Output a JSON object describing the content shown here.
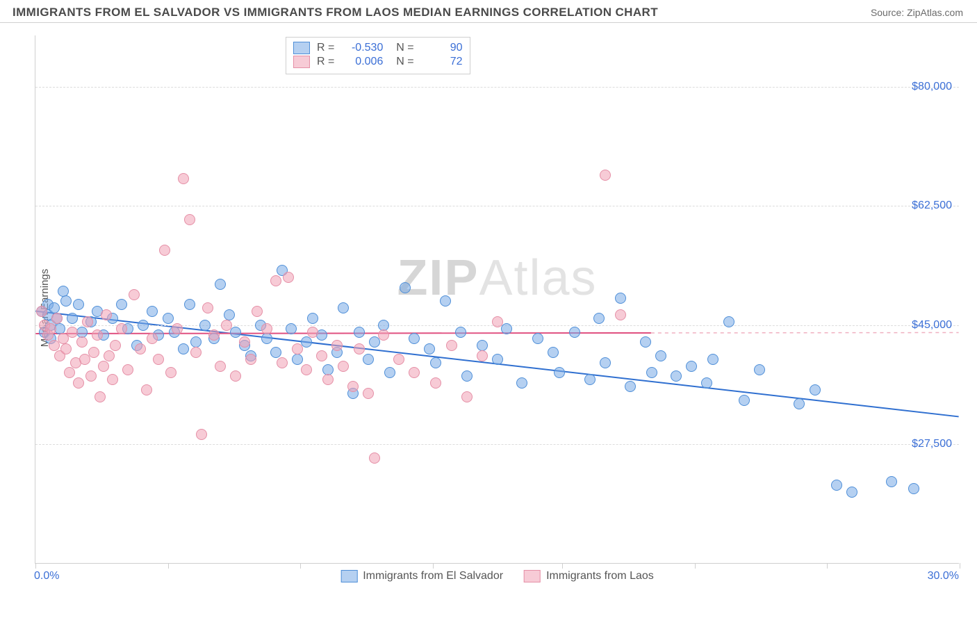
{
  "title": "IMMIGRANTS FROM EL SALVADOR VS IMMIGRANTS FROM LAOS MEDIAN EARNINGS CORRELATION CHART",
  "source": "Source: ZipAtlas.com",
  "ylabel": "Median Earnings",
  "watermark_bold": "ZIP",
  "watermark_rest": "Atlas",
  "chart": {
    "type": "scatter",
    "xlim": [
      0,
      30
    ],
    "ylim": [
      10000,
      87500
    ],
    "x_tick_positions": [
      0,
      4.3,
      8.6,
      12.9,
      17.1,
      21.4,
      25.7,
      30
    ],
    "x_start_label": "0.0%",
    "x_end_label": "30.0%",
    "y_gridlines": [
      27500,
      45000,
      62500,
      80000
    ],
    "y_tick_labels": [
      "$27,500",
      "$45,000",
      "$62,500",
      "$80,000"
    ],
    "grid_color": "#dcdcdc",
    "background_color": "#ffffff",
    "axis_color": "#cfcfcf",
    "label_color": "#3b6fd6",
    "series": [
      {
        "name": "Immigrants from El Salvador",
        "color_fill": "rgba(120,170,230,0.55)",
        "color_stroke": "#4f8fd8",
        "R": "-0.530",
        "N": "90",
        "trend": {
          "x1": 0,
          "y1": 47000,
          "x2": 30,
          "y2": 31500,
          "stroke": "#2f6fd0",
          "width": 2
        },
        "points": [
          [
            0.2,
            47000
          ],
          [
            0.3,
            44000
          ],
          [
            0.4,
            46500
          ],
          [
            0.4,
            48000
          ],
          [
            0.5,
            45000
          ],
          [
            0.5,
            43000
          ],
          [
            0.6,
            47500
          ],
          [
            0.7,
            46000
          ],
          [
            0.8,
            44500
          ],
          [
            0.9,
            50000
          ],
          [
            1.0,
            48500
          ],
          [
            1.2,
            46000
          ],
          [
            1.4,
            48000
          ],
          [
            1.5,
            44000
          ],
          [
            1.8,
            45500
          ],
          [
            2.0,
            47000
          ],
          [
            2.2,
            43500
          ],
          [
            2.5,
            46000
          ],
          [
            2.8,
            48000
          ],
          [
            3.0,
            44500
          ],
          [
            3.3,
            42000
          ],
          [
            3.5,
            45000
          ],
          [
            3.8,
            47000
          ],
          [
            4.0,
            43500
          ],
          [
            4.3,
            46000
          ],
          [
            4.5,
            44000
          ],
          [
            4.8,
            41500
          ],
          [
            5.0,
            48000
          ],
          [
            5.2,
            42500
          ],
          [
            5.5,
            45000
          ],
          [
            5.8,
            43000
          ],
          [
            6.0,
            51000
          ],
          [
            6.3,
            46500
          ],
          [
            6.5,
            44000
          ],
          [
            6.8,
            42000
          ],
          [
            7.0,
            40500
          ],
          [
            7.3,
            45000
          ],
          [
            7.5,
            43000
          ],
          [
            7.8,
            41000
          ],
          [
            8.0,
            53000
          ],
          [
            8.3,
            44500
          ],
          [
            8.5,
            40000
          ],
          [
            8.8,
            42500
          ],
          [
            9.0,
            46000
          ],
          [
            9.3,
            43500
          ],
          [
            9.5,
            38500
          ],
          [
            9.8,
            41000
          ],
          [
            10.0,
            47500
          ],
          [
            10.3,
            35000
          ],
          [
            10.5,
            44000
          ],
          [
            10.8,
            40000
          ],
          [
            11.0,
            42500
          ],
          [
            11.3,
            45000
          ],
          [
            11.5,
            38000
          ],
          [
            12.0,
            50500
          ],
          [
            12.3,
            43000
          ],
          [
            12.8,
            41500
          ],
          [
            13.0,
            39500
          ],
          [
            13.3,
            48500
          ],
          [
            13.8,
            44000
          ],
          [
            14.0,
            37500
          ],
          [
            14.5,
            42000
          ],
          [
            15.0,
            40000
          ],
          [
            15.3,
            44500
          ],
          [
            15.8,
            36500
          ],
          [
            16.3,
            43000
          ],
          [
            16.8,
            41000
          ],
          [
            17.0,
            38000
          ],
          [
            17.5,
            44000
          ],
          [
            18.0,
            37000
          ],
          [
            18.3,
            46000
          ],
          [
            18.5,
            39500
          ],
          [
            19.0,
            49000
          ],
          [
            19.3,
            36000
          ],
          [
            19.8,
            42500
          ],
          [
            20.0,
            38000
          ],
          [
            20.3,
            40500
          ],
          [
            20.8,
            37500
          ],
          [
            21.3,
            39000
          ],
          [
            21.8,
            36500
          ],
          [
            22.0,
            40000
          ],
          [
            22.5,
            45500
          ],
          [
            23.0,
            34000
          ],
          [
            23.5,
            38500
          ],
          [
            24.8,
            33500
          ],
          [
            25.3,
            35500
          ],
          [
            26.0,
            21500
          ],
          [
            26.5,
            20500
          ],
          [
            27.8,
            22000
          ],
          [
            28.5,
            21000
          ]
        ]
      },
      {
        "name": "Immigrants from Laos",
        "color_fill": "rgba(240,160,180,0.55)",
        "color_stroke": "#e58fa6",
        "R": "0.006",
        "N": "72",
        "trend_solid": {
          "x1": 0,
          "y1": 43700,
          "x2": 20,
          "y2": 43800,
          "stroke": "#e05080",
          "width": 2
        },
        "trend_dash": {
          "x1": 20,
          "y1": 43800,
          "x2": 30,
          "y2": 43850,
          "stroke": "#f0b0c0",
          "width": 1.5
        },
        "points": [
          [
            0.2,
            47000
          ],
          [
            0.3,
            45000
          ],
          [
            0.4,
            43500
          ],
          [
            0.5,
            44500
          ],
          [
            0.6,
            42000
          ],
          [
            0.7,
            46000
          ],
          [
            0.8,
            40500
          ],
          [
            0.9,
            43000
          ],
          [
            1.0,
            41500
          ],
          [
            1.1,
            38000
          ],
          [
            1.2,
            44000
          ],
          [
            1.3,
            39500
          ],
          [
            1.4,
            36500
          ],
          [
            1.5,
            42500
          ],
          [
            1.6,
            40000
          ],
          [
            1.7,
            45500
          ],
          [
            1.8,
            37500
          ],
          [
            1.9,
            41000
          ],
          [
            2.0,
            43500
          ],
          [
            2.1,
            34500
          ],
          [
            2.2,
            39000
          ],
          [
            2.3,
            46500
          ],
          [
            2.4,
            40500
          ],
          [
            2.5,
            37000
          ],
          [
            2.6,
            42000
          ],
          [
            2.8,
            44500
          ],
          [
            3.0,
            38500
          ],
          [
            3.2,
            49500
          ],
          [
            3.4,
            41500
          ],
          [
            3.6,
            35500
          ],
          [
            3.8,
            43000
          ],
          [
            4.0,
            40000
          ],
          [
            4.2,
            56000
          ],
          [
            4.4,
            38000
          ],
          [
            4.6,
            44500
          ],
          [
            4.8,
            66500
          ],
          [
            5.0,
            60500
          ],
          [
            5.2,
            41000
          ],
          [
            5.4,
            29000
          ],
          [
            5.6,
            47500
          ],
          [
            5.8,
            43500
          ],
          [
            6.0,
            39000
          ],
          [
            6.2,
            45000
          ],
          [
            6.5,
            37500
          ],
          [
            6.8,
            42500
          ],
          [
            7.0,
            40000
          ],
          [
            7.2,
            47000
          ],
          [
            7.5,
            44500
          ],
          [
            7.8,
            51500
          ],
          [
            8.0,
            39500
          ],
          [
            8.2,
            52000
          ],
          [
            8.5,
            41500
          ],
          [
            8.8,
            38500
          ],
          [
            9.0,
            44000
          ],
          [
            9.3,
            40500
          ],
          [
            9.5,
            37000
          ],
          [
            9.8,
            42000
          ],
          [
            10.0,
            39000
          ],
          [
            10.3,
            36000
          ],
          [
            10.5,
            41500
          ],
          [
            10.8,
            35000
          ],
          [
            11.0,
            25500
          ],
          [
            11.3,
            43500
          ],
          [
            11.8,
            40000
          ],
          [
            12.3,
            38000
          ],
          [
            13.0,
            36500
          ],
          [
            13.5,
            42000
          ],
          [
            14.0,
            34500
          ],
          [
            14.5,
            40500
          ],
          [
            15.0,
            45500
          ],
          [
            18.5,
            67000
          ],
          [
            19.0,
            46500
          ]
        ]
      }
    ]
  },
  "legend_bottom": {
    "item1": "Immigrants from El Salvador",
    "item2": "Immigrants from Laos"
  }
}
